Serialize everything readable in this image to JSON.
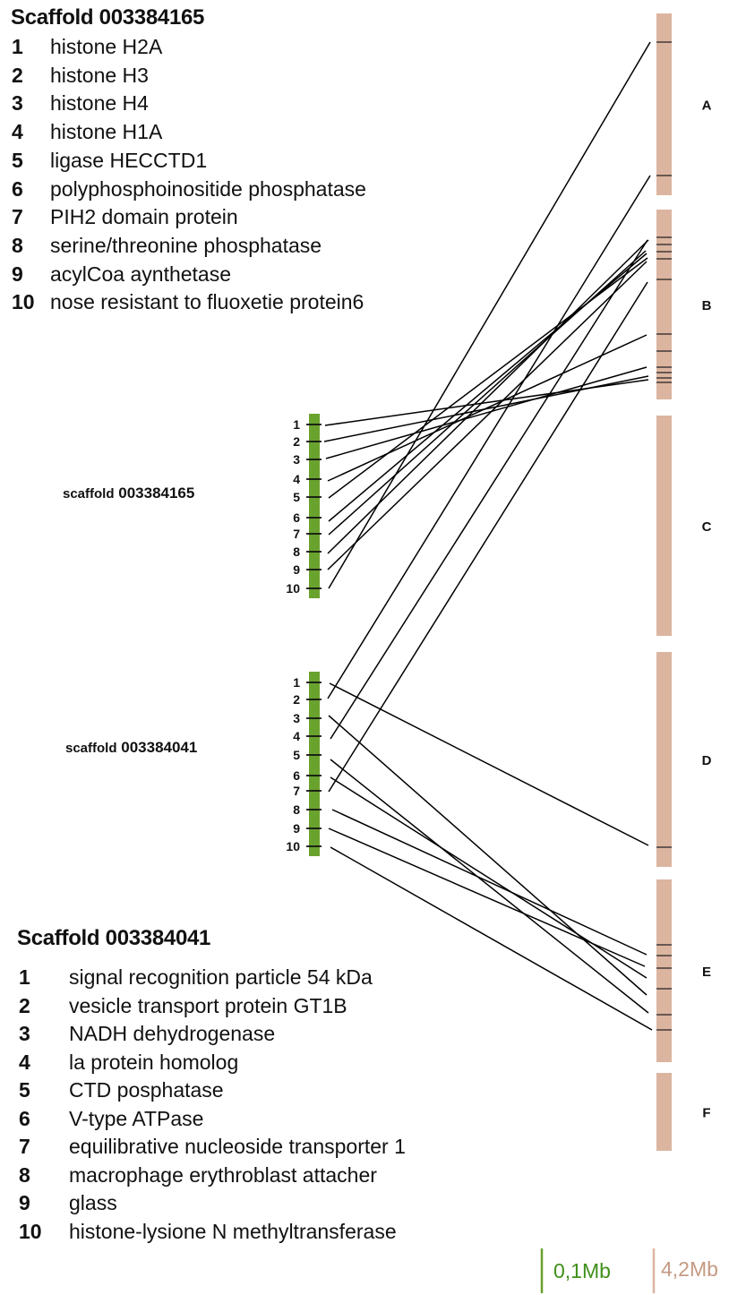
{
  "legend_top": {
    "title_word": "Scaffold",
    "title_id": "003384165",
    "items": [
      {
        "num": "1",
        "label": "histone H2A"
      },
      {
        "num": "2",
        "label": "histone H3"
      },
      {
        "num": "3",
        "label": "histone H4"
      },
      {
        "num": "4",
        "label": "histone H1A"
      },
      {
        "num": "5",
        "label": "ligase HECCTD1"
      },
      {
        "num": "6",
        "label": "polyphosphoinositide phosphatase"
      },
      {
        "num": "7",
        "label": "PIH2 domain protein"
      },
      {
        "num": "8",
        "label": "serine/threonine phosphatase"
      },
      {
        "num": "9",
        "label": "acylCoa aynthetase"
      },
      {
        "num": "10",
        "label": "nose resistant to fluoxetie protein6"
      }
    ]
  },
  "legend_bottom": {
    "title_word": "Scaffold",
    "title_id": "003384041",
    "items": [
      {
        "num": "1",
        "label": "signal recognition particle 54 kDa"
      },
      {
        "num": "2",
        "label": "vesicle transport protein GT1B"
      },
      {
        "num": "3",
        "label": "NADH dehydrogenase"
      },
      {
        "num": "4",
        "label": "la protein homolog"
      },
      {
        "num": "5",
        "label": "CTD posphatase"
      },
      {
        "num": "6",
        "label": "V-type ATPase"
      },
      {
        "num": "7",
        "label": "equilibrative nucleoside transporter 1"
      },
      {
        "num": "8",
        "label": "macrophage erythroblast attacher"
      },
      {
        "num": "9",
        "label": "glass"
      },
      {
        "num": "10",
        "label": "histone-lysione N methyltransferase"
      }
    ]
  },
  "scaffold_a": {
    "label_word": "scaffold",
    "label_id": "003384165",
    "gene_numbers": [
      "1",
      "2",
      "3",
      "4",
      "5",
      "6",
      "7",
      "8",
      "9",
      "10"
    ]
  },
  "scaffold_b": {
    "label_word": "scaffold",
    "label_id": "003384041",
    "gene_numbers": [
      "1",
      "2",
      "3",
      "4",
      "5",
      "6",
      "7",
      "8",
      "9",
      "10"
    ]
  },
  "chromosomes": [
    "A",
    "B",
    "C",
    "D",
    "E",
    "F"
  ],
  "scale_bars": {
    "scaffold": "0,1Mb",
    "chromosome": "4,2Mb"
  },
  "colors": {
    "scaffold": "#6aa22e",
    "chromosome": "#dcb5a0",
    "scaffold_text": "#3f8f1a",
    "chromosome_text": "#c49a82",
    "line": "#000000"
  }
}
